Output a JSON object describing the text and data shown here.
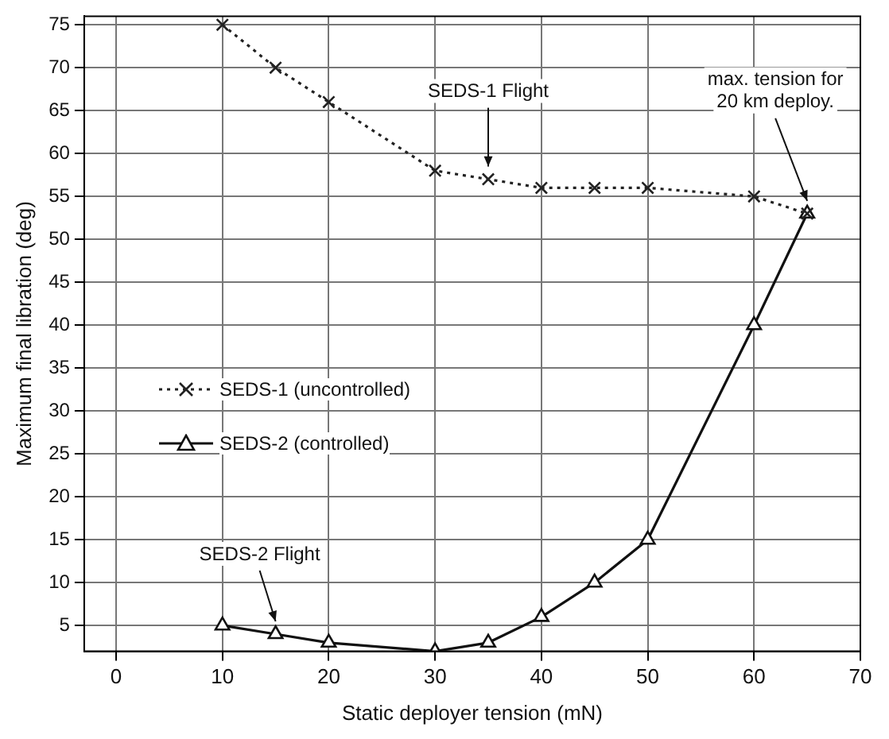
{
  "chart_data": {
    "type": "line",
    "xlabel": "Static deployer tension (mN)",
    "ylabel": "Maximum final libration (deg)",
    "xlim": [
      -3,
      70
    ],
    "xticks": [
      0,
      10,
      20,
      30,
      40,
      50,
      60,
      70
    ],
    "ylim": [
      2,
      76
    ],
    "yticks": [
      5,
      10,
      15,
      20,
      25,
      30,
      35,
      40,
      45,
      50,
      55,
      60,
      65,
      70,
      75
    ],
    "grid": true,
    "legend": "left",
    "series": [
      {
        "name": "SEDS-1 (uncontrolled)",
        "color": "#222222",
        "marker": "cross",
        "line_style": "dotted",
        "x": [
          10,
          15,
          20,
          30,
          35,
          40,
          45,
          50,
          60,
          65
        ],
        "values": [
          75,
          70,
          66,
          58,
          57,
          56,
          56,
          56,
          55,
          53
        ]
      },
      {
        "name": "SEDS-2 (controlled)",
        "color": "#111111",
        "marker": "triangle",
        "line_style": "solid",
        "x": [
          10,
          15,
          20,
          30,
          35,
          40,
          45,
          50,
          60,
          65
        ],
        "values": [
          5,
          4,
          3,
          2,
          3,
          6,
          10,
          15,
          40,
          53
        ]
      }
    ],
    "annotations": [
      {
        "text": "SEDS-1 Flight",
        "x": 35,
        "y": 57
      },
      {
        "text": "SEDS-2 Flight",
        "x": 15,
        "y": 4
      },
      {
        "text": "max. tension for\n20 km deploy.",
        "x": 65,
        "y": 53
      }
    ]
  }
}
